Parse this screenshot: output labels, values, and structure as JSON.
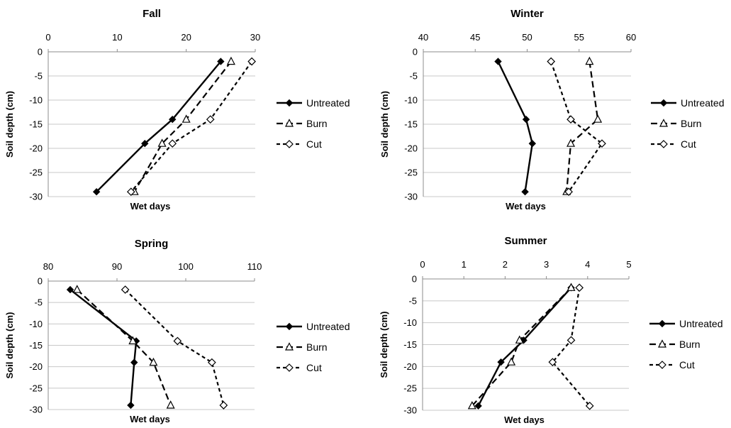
{
  "chart_data": [
    {
      "type": "line",
      "title": "Fall",
      "xlabel": "Wet days",
      "ylabel": "Soil depth (cm)",
      "xlim": [
        0,
        30
      ],
      "ylim": [
        -30,
        0
      ],
      "xticks": [
        "0",
        "10",
        "20",
        "30"
      ],
      "yticks": [
        "0",
        "-5",
        "-10",
        "-15",
        "-20",
        "-25",
        "-30"
      ],
      "grid": "horizontal",
      "legend": "right",
      "depths": [
        -2,
        -14,
        -19,
        -29
      ],
      "series": [
        {
          "name": "Untreated",
          "values": [
            25,
            18,
            14,
            7
          ]
        },
        {
          "name": "Burn",
          "values": [
            26.5,
            20,
            16.5,
            12.5
          ]
        },
        {
          "name": "Cut",
          "values": [
            29.5,
            23.5,
            18,
            12
          ]
        }
      ]
    },
    {
      "type": "line",
      "title": "Winter",
      "xlabel": "Wet days",
      "ylabel": "Soil depth (cm)",
      "xlim": [
        40,
        60
      ],
      "ylim": [
        -30,
        0
      ],
      "xticks": [
        "40",
        "45",
        "50",
        "55",
        "60"
      ],
      "yticks": [
        "0",
        "-5",
        "-10",
        "-15",
        "-20",
        "-25",
        "-30"
      ],
      "grid": "horizontal",
      "legend": "right",
      "depths": [
        -2,
        -14,
        -19,
        -29
      ],
      "series": [
        {
          "name": "Untreated",
          "values": [
            47.2,
            49.9,
            50.5,
            49.8
          ]
        },
        {
          "name": "Burn",
          "values": [
            56,
            56.8,
            54.2,
            53.8
          ]
        },
        {
          "name": "Cut",
          "values": [
            52.3,
            54.2,
            57.2,
            54
          ]
        }
      ]
    },
    {
      "type": "line",
      "title": "Spring",
      "xlabel": "Wet days",
      "ylabel": "Soil depth (cm)",
      "xlim": [
        80,
        110
      ],
      "ylim": [
        -30,
        0
      ],
      "xticks": [
        "80",
        "90",
        "100",
        "110"
      ],
      "yticks": [
        "0",
        "-5",
        "-10",
        "-15",
        "-20",
        "-25",
        "-30"
      ],
      "grid": "horizontal",
      "legend": "right",
      "depths": [
        -2,
        -14,
        -19,
        -29
      ],
      "series": [
        {
          "name": "Untreated",
          "values": [
            83.2,
            92.8,
            92.5,
            92
          ]
        },
        {
          "name": "Burn",
          "values": [
            84.2,
            92.3,
            95.3,
            97.8
          ]
        },
        {
          "name": "Cut",
          "values": [
            91.2,
            98.8,
            103.8,
            105.5
          ]
        }
      ]
    },
    {
      "type": "line",
      "title": "Summer",
      "xlabel": "Wet days",
      "ylabel": "Soil depth (cm)",
      "xlim": [
        0,
        5
      ],
      "ylim": [
        -30,
        0
      ],
      "xticks": [
        "0",
        "1",
        "2",
        "3",
        "4",
        "5"
      ],
      "yticks": [
        "0",
        "-5",
        "-10",
        "-15",
        "-20",
        "-25",
        "-30"
      ],
      "grid": "horizontal",
      "legend": "right",
      "depths": [
        -2,
        -14,
        -19,
        -29
      ],
      "series": [
        {
          "name": "Untreated",
          "values": [
            3.6,
            2.45,
            1.9,
            1.35
          ]
        },
        {
          "name": "Burn",
          "values": [
            3.6,
            2.35,
            2.15,
            1.2
          ]
        },
        {
          "name": "Cut",
          "values": [
            3.8,
            3.6,
            3.15,
            4.05
          ]
        }
      ]
    }
  ]
}
